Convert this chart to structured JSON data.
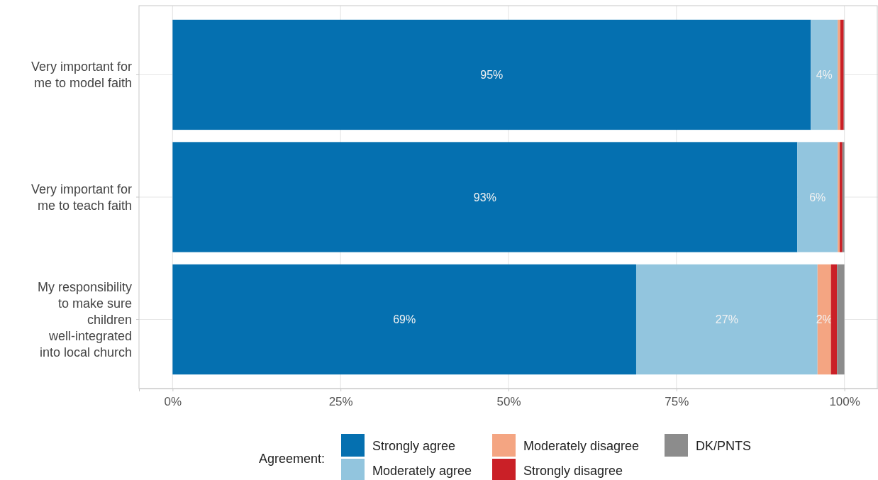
{
  "chart_data": {
    "type": "bar",
    "orientation": "horizontal",
    "stacked": true,
    "categories": [
      "Very important for me to model faith",
      "Very important for me to teach faith",
      "My responsibility to make sure children well-integrated into local church"
    ],
    "series": [
      {
        "name": "Strongly agree",
        "color": "#0570b0",
        "values": [
          95,
          93,
          69
        ],
        "value_labels": [
          "95%",
          "93%",
          "69%"
        ]
      },
      {
        "name": "Moderately agree",
        "color": "#92c5de",
        "values": [
          4,
          6,
          27
        ],
        "value_labels": [
          "4%",
          "6%",
          "27%"
        ]
      },
      {
        "name": "Moderately disagree",
        "color": "#f4a582",
        "values": [
          0.4,
          0.3,
          2
        ],
        "value_labels": [
          null,
          null,
          "2%"
        ]
      },
      {
        "name": "Strongly disagree",
        "color": "#ca2027",
        "values": [
          0.5,
          0.4,
          0.9
        ],
        "value_labels": [
          null,
          null,
          null
        ]
      },
      {
        "name": "DK/PNTS",
        "color": "#8c8c8c",
        "values": [
          0.1,
          0.3,
          1.1
        ],
        "value_labels": [
          null,
          null,
          null
        ]
      }
    ],
    "xlim": [
      -5,
      105
    ],
    "xticks": [
      {
        "value": 0,
        "label": "0%"
      },
      {
        "value": 25,
        "label": "25%"
      },
      {
        "value": 50,
        "label": "50%"
      },
      {
        "value": 75,
        "label": "75%"
      },
      {
        "value": 100,
        "label": "100%"
      }
    ],
    "grid": true,
    "legend": "bottom",
    "legend_title": "Agreement:"
  }
}
